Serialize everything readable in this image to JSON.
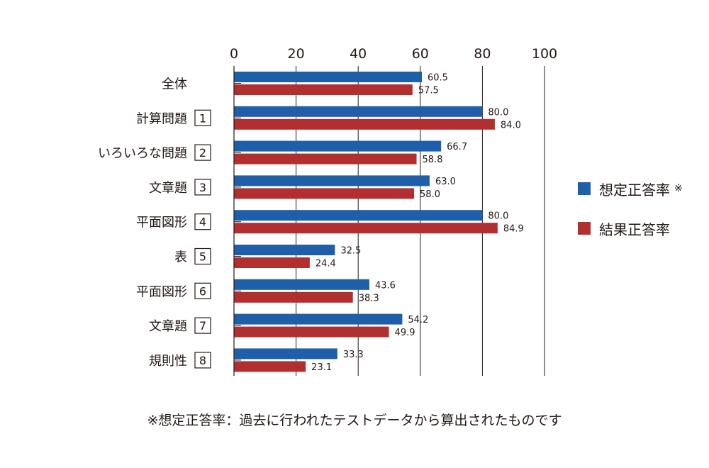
{
  "chart_data": {
    "type": "bar",
    "orientation": "horizontal",
    "xlim": [
      0,
      100
    ],
    "x_ticks": [
      "0",
      "20",
      "40",
      "60",
      "80",
      "100"
    ],
    "grid": true,
    "legend_position": "right",
    "categories": [
      {
        "label": "全体",
        "badge": ""
      },
      {
        "label": "計算問題",
        "badge": "1"
      },
      {
        "label": "いろいろな問題",
        "badge": "2"
      },
      {
        "label": "文章題",
        "badge": "3"
      },
      {
        "label": "平面図形",
        "badge": "4"
      },
      {
        "label": "表",
        "badge": "5"
      },
      {
        "label": "平面図形",
        "badge": "6"
      },
      {
        "label": "文章題",
        "badge": "7"
      },
      {
        "label": "規則性",
        "badge": "8"
      }
    ],
    "series": [
      {
        "name": "想定正答率",
        "note": "※",
        "color": "#1f5ea8",
        "values": [
          60.5,
          80.0,
          66.7,
          63.0,
          80.0,
          32.5,
          43.6,
          54.2,
          33.3
        ],
        "labels": [
          "60.5",
          "80.0",
          "66.7",
          "63.0",
          "80.0",
          "32.5",
          "43.6",
          "54.2",
          "33.3"
        ]
      },
      {
        "name": "結果正答率",
        "note": "",
        "color": "#b22f30",
        "values": [
          57.5,
          84.0,
          58.8,
          58.0,
          84.9,
          24.4,
          38.3,
          49.9,
          23.1
        ],
        "labels": [
          "57.5",
          "84.0",
          "58.8",
          "58.0",
          "84.9",
          "24.4",
          "38.3",
          "49.9",
          "23.1"
        ]
      }
    ]
  },
  "footnote": "※想定正答率：過去に行われたテストデータから算出されたものです"
}
